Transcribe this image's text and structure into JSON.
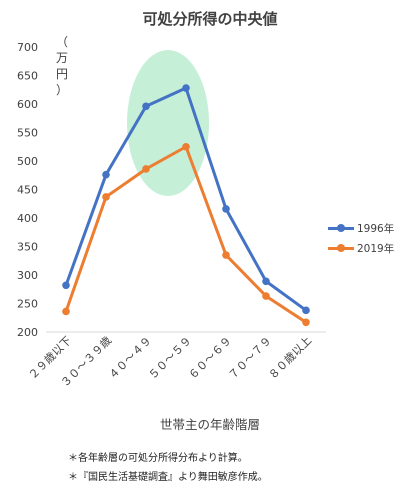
{
  "chart_data": {
    "type": "line",
    "title": "可処分所得の中央値",
    "ylabel": "（万円）",
    "xlabel": "世帯主の年齢階層",
    "categories": [
      "２９歳以下",
      "３０～３９歳",
      "４０～４９",
      "５０～５９",
      "６０～６９",
      "７０～７９",
      "８０歳以上"
    ],
    "ylim": [
      200,
      700
    ],
    "yticks": [
      200,
      250,
      300,
      350,
      400,
      450,
      500,
      550,
      600,
      650,
      700
    ],
    "grid": false,
    "legend_position": "right",
    "series": [
      {
        "name": "1996年",
        "color": "#4472C4",
        "values": [
          282,
          476,
          596,
          628,
          416,
          289,
          238
        ]
      },
      {
        "name": "2019年",
        "color": "#ED7D31",
        "values": [
          236,
          437,
          486,
          525,
          335,
          263,
          217
        ]
      }
    ],
    "highlight": {
      "color": "#C6EFD8"
    }
  },
  "notes": [
    "＊各年齢層の可処分所得分布より計算。",
    "＊『国民生活基礎調査』より舞田敏彦作成。"
  ]
}
